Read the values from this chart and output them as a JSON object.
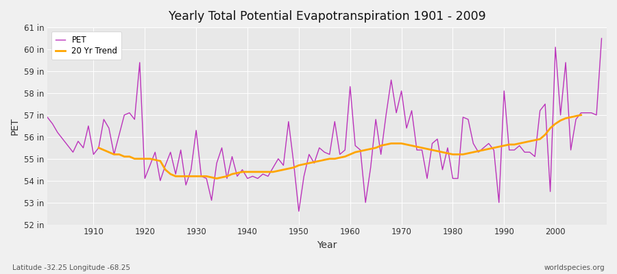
{
  "title": "Yearly Total Potential Evapotranspiration 1901 - 2009",
  "xlabel": "Year",
  "ylabel": "PET",
  "subtitle": "Latitude -32.25 Longitude -68.25",
  "watermark": "worldspecies.org",
  "ylim": [
    52,
    61
  ],
  "pet_color": "#bb33bb",
  "trend_color": "#ffa500",
  "bg_color": "#f0f0f0",
  "plot_bg": "#e8e8e8",
  "grid_color": "#ffffff",
  "years": [
    1901,
    1902,
    1903,
    1904,
    1905,
    1906,
    1907,
    1908,
    1909,
    1910,
    1911,
    1912,
    1913,
    1914,
    1915,
    1916,
    1917,
    1918,
    1919,
    1920,
    1921,
    1922,
    1923,
    1924,
    1925,
    1926,
    1927,
    1928,
    1929,
    1930,
    1931,
    1932,
    1933,
    1934,
    1935,
    1936,
    1937,
    1938,
    1939,
    1940,
    1941,
    1942,
    1943,
    1944,
    1945,
    1946,
    1947,
    1948,
    1949,
    1950,
    1951,
    1952,
    1953,
    1954,
    1955,
    1956,
    1957,
    1958,
    1959,
    1960,
    1961,
    1962,
    1963,
    1964,
    1965,
    1966,
    1967,
    1968,
    1969,
    1970,
    1971,
    1972,
    1973,
    1974,
    1975,
    1976,
    1977,
    1978,
    1979,
    1980,
    1981,
    1982,
    1983,
    1984,
    1985,
    1986,
    1987,
    1988,
    1989,
    1990,
    1991,
    1992,
    1993,
    1994,
    1995,
    1996,
    1997,
    1998,
    1999,
    2000,
    2001,
    2002,
    2003,
    2004,
    2005,
    2006,
    2007,
    2008,
    2009
  ],
  "pet_values": [
    56.9,
    56.6,
    56.2,
    55.9,
    55.6,
    55.3,
    55.8,
    55.5,
    56.5,
    55.2,
    55.5,
    56.8,
    56.4,
    55.2,
    56.1,
    57.0,
    57.1,
    56.8,
    59.4,
    54.1,
    54.7,
    55.3,
    54.0,
    54.7,
    55.3,
    54.3,
    55.4,
    53.8,
    54.5,
    56.3,
    54.2,
    54.1,
    53.1,
    54.8,
    55.5,
    54.1,
    55.1,
    54.2,
    54.5,
    54.1,
    54.2,
    54.1,
    54.3,
    54.2,
    54.6,
    55.0,
    54.7,
    56.7,
    54.8,
    52.6,
    54.2,
    55.2,
    54.8,
    55.5,
    55.3,
    55.2,
    56.7,
    55.2,
    55.4,
    58.3,
    55.6,
    55.4,
    53.0,
    54.6,
    56.8,
    55.2,
    57.0,
    58.6,
    57.1,
    58.1,
    56.4,
    57.2,
    55.4,
    55.4,
    54.1,
    55.7,
    55.9,
    54.5,
    55.5,
    54.1,
    54.1,
    56.9,
    56.8,
    55.7,
    55.3,
    55.5,
    55.7,
    55.4,
    53.0,
    58.1,
    55.4,
    55.4,
    55.6,
    55.3,
    55.3,
    55.1,
    57.2,
    57.5,
    53.5,
    60.1,
    57.0,
    59.4,
    55.4,
    56.8,
    57.1,
    57.1,
    57.1,
    57.0,
    60.5
  ],
  "trend_values": [
    null,
    null,
    null,
    null,
    null,
    null,
    null,
    null,
    null,
    null,
    55.5,
    55.4,
    55.3,
    55.2,
    55.2,
    55.1,
    55.1,
    55.0,
    55.0,
    55.0,
    55.0,
    54.95,
    54.9,
    54.5,
    54.3,
    54.2,
    54.2,
    54.2,
    54.2,
    54.2,
    54.2,
    54.2,
    54.15,
    54.1,
    54.15,
    54.2,
    54.3,
    54.35,
    54.4,
    54.4,
    54.4,
    54.4,
    54.4,
    54.4,
    54.4,
    54.45,
    54.5,
    54.55,
    54.6,
    54.7,
    54.75,
    54.8,
    54.85,
    54.9,
    54.95,
    55.0,
    55.0,
    55.05,
    55.1,
    55.2,
    55.3,
    55.35,
    55.4,
    55.45,
    55.5,
    55.6,
    55.65,
    55.7,
    55.7,
    55.7,
    55.65,
    55.6,
    55.55,
    55.5,
    55.45,
    55.4,
    55.35,
    55.3,
    55.25,
    55.2,
    55.2,
    55.2,
    55.25,
    55.3,
    55.35,
    55.4,
    55.45,
    55.5,
    55.55,
    55.6,
    55.65,
    55.65,
    55.7,
    55.75,
    55.8,
    55.85,
    55.9,
    56.1,
    56.4,
    56.6,
    56.75,
    56.85,
    56.9,
    56.95,
    57.0,
    null,
    null,
    null,
    null
  ]
}
